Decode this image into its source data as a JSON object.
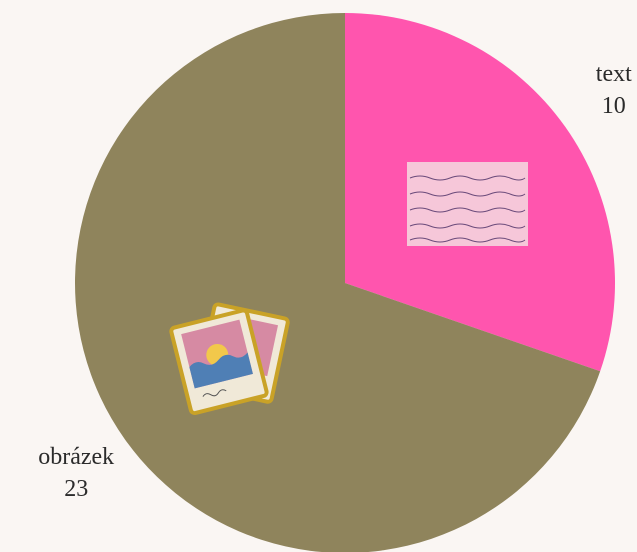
{
  "chart_data": {
    "type": "pie",
    "categories": [
      "text",
      "obrázek"
    ],
    "values": [
      10,
      23
    ],
    "colors": [
      "#ff55ae",
      "#8f845c"
    ]
  }
}
